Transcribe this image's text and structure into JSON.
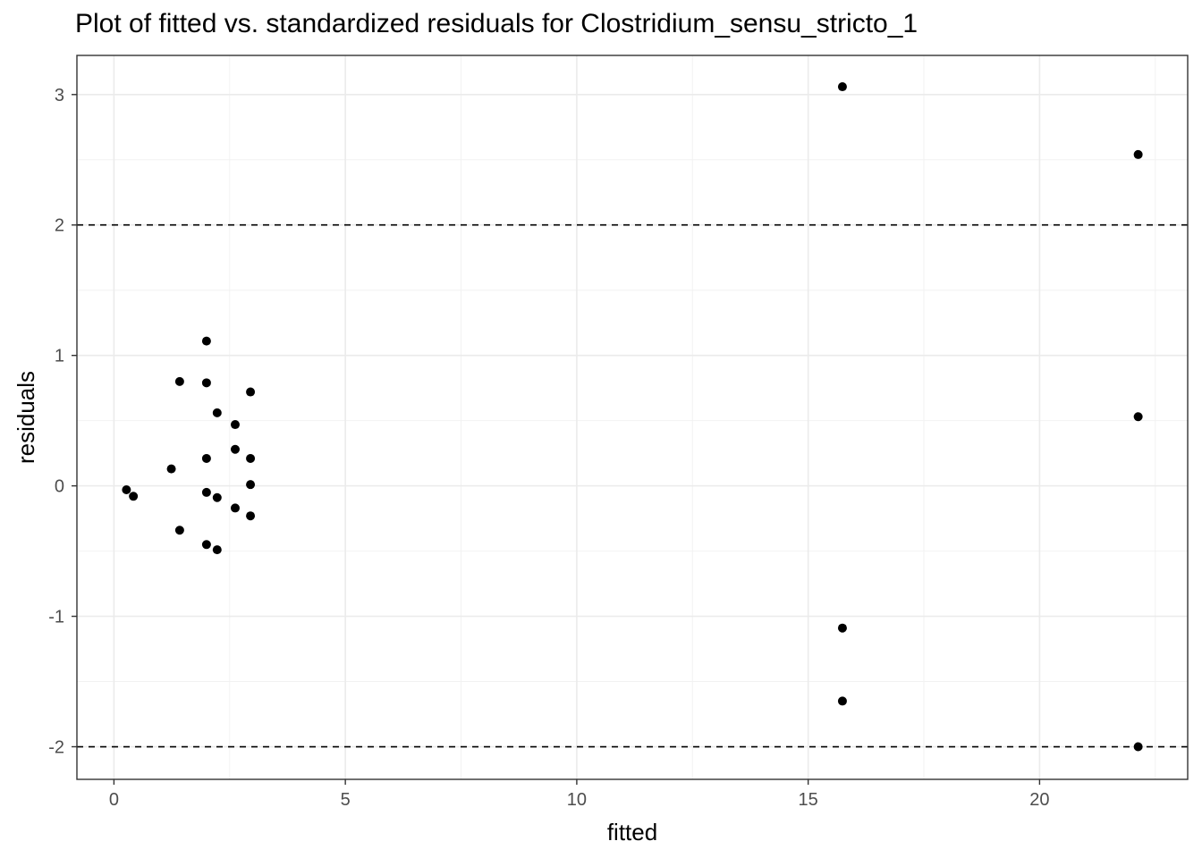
{
  "chart_data": {
    "type": "scatter",
    "title": "Plot of fitted vs. standardized residuals for Clostridium_sensu_stricto_1",
    "xlabel": "fitted",
    "ylabel": "residuals",
    "xlim": [
      -0.8,
      23.2
    ],
    "ylim": [
      -2.25,
      3.3
    ],
    "xticks": [
      0,
      5,
      10,
      15,
      20
    ],
    "xtick_labels": [
      "0",
      "5",
      "10",
      "15",
      "20"
    ],
    "yticks": [
      -2,
      -1,
      0,
      1,
      2,
      3
    ],
    "ytick_labels": [
      "-2",
      "-1",
      "0",
      "1",
      "2",
      "3"
    ],
    "grid": true,
    "reference_lines": [
      {
        "axis": "y",
        "value": 2,
        "style": "dashed"
      },
      {
        "axis": "y",
        "value": -2,
        "style": "dashed"
      }
    ],
    "series": [
      {
        "points": [
          {
            "x": 0.27,
            "y": -0.03
          },
          {
            "x": 0.42,
            "y": -0.08
          },
          {
            "x": 1.24,
            "y": 0.13
          },
          {
            "x": 1.42,
            "y": 0.8
          },
          {
            "x": 1.42,
            "y": -0.34
          },
          {
            "x": 2.0,
            "y": 1.11
          },
          {
            "x": 2.0,
            "y": 0.79
          },
          {
            "x": 2.0,
            "y": 0.21
          },
          {
            "x": 2.0,
            "y": -0.05
          },
          {
            "x": 2.0,
            "y": -0.45
          },
          {
            "x": 2.23,
            "y": 0.56
          },
          {
            "x": 2.23,
            "y": -0.09
          },
          {
            "x": 2.23,
            "y": -0.49
          },
          {
            "x": 2.62,
            "y": 0.47
          },
          {
            "x": 2.62,
            "y": 0.28
          },
          {
            "x": 2.62,
            "y": -0.17
          },
          {
            "x": 2.95,
            "y": 0.72
          },
          {
            "x": 2.95,
            "y": 0.21
          },
          {
            "x": 2.95,
            "y": 0.01
          },
          {
            "x": 2.95,
            "y": -0.23
          },
          {
            "x": 15.74,
            "y": 3.06
          },
          {
            "x": 15.74,
            "y": -1.09
          },
          {
            "x": 15.74,
            "y": -1.65
          },
          {
            "x": 22.13,
            "y": 2.54
          },
          {
            "x": 22.13,
            "y": 0.53
          },
          {
            "x": 22.13,
            "y": -2.0
          }
        ],
        "color": "#000000"
      }
    ],
    "colors": {
      "panel_border": "#333333",
      "grid_major": "#ebebeb",
      "grid_minor": "#f2f2f2",
      "points": "#000000",
      "tick_text": "#4d4d4d"
    }
  }
}
